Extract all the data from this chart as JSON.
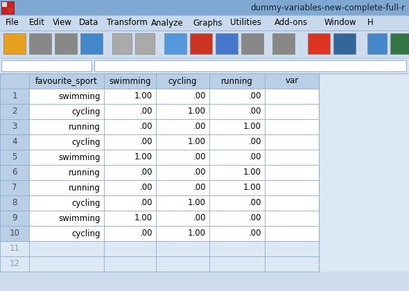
{
  "title_bar_text": "dummy-variables-new-complete-full-r",
  "title_bar_bg": "#7fa8d0",
  "title_bar_text_color": "#1a1a2e",
  "menu_items": [
    "File",
    "Edit",
    "View",
    "Data",
    "Transform",
    "Analyze",
    "Graphs",
    "Utilities",
    "Add-ons",
    "Window",
    "H"
  ],
  "menu_bg": "#c8d9ed",
  "menu_text_color": "#000000",
  "toolbar_bg": "#cddded",
  "formula_bar_bg": "#dce9f5",
  "col_headers": [
    "favourite_sport",
    "swimming",
    "cycling",
    "running",
    "var"
  ],
  "row_numbers": [
    1,
    2,
    3,
    4,
    5,
    6,
    7,
    8,
    9,
    10,
    11,
    12
  ],
  "data": [
    [
      "swimming",
      "1.00",
      ".00",
      ".00",
      ""
    ],
    [
      "cycling",
      ".00",
      "1.00",
      ".00",
      ""
    ],
    [
      "running",
      ".00",
      ".00",
      "1.00",
      ""
    ],
    [
      "cycling",
      ".00",
      "1.00",
      ".00",
      ""
    ],
    [
      "swimming",
      "1.00",
      ".00",
      ".00",
      ""
    ],
    [
      "running",
      ".00",
      ".00",
      "1.00",
      ""
    ],
    [
      "running",
      ".00",
      ".00",
      "1.00",
      ""
    ],
    [
      "cycling",
      ".00",
      "1.00",
      ".00",
      ""
    ],
    [
      "swimming",
      "1.00",
      ".00",
      ".00",
      ""
    ],
    [
      "cycling",
      ".00",
      "1.00",
      ".00",
      ""
    ],
    [
      "",
      "",
      "",
      "",
      ""
    ],
    [
      "",
      "",
      "",
      "",
      ""
    ]
  ],
  "bg_color": "#cddded",
  "header_bg": "#b8cfe6",
  "cell_bg": "#ffffff",
  "row_num_bg": "#b8cfe6",
  "empty_cell_bg": "#dce9f5",
  "grid_color": "#8aabcc",
  "row_num_color": "#404060",
  "empty_row_num_color": "#8899bb",
  "fig_w": 5.9,
  "fig_h": 4.2,
  "dpi": 100
}
